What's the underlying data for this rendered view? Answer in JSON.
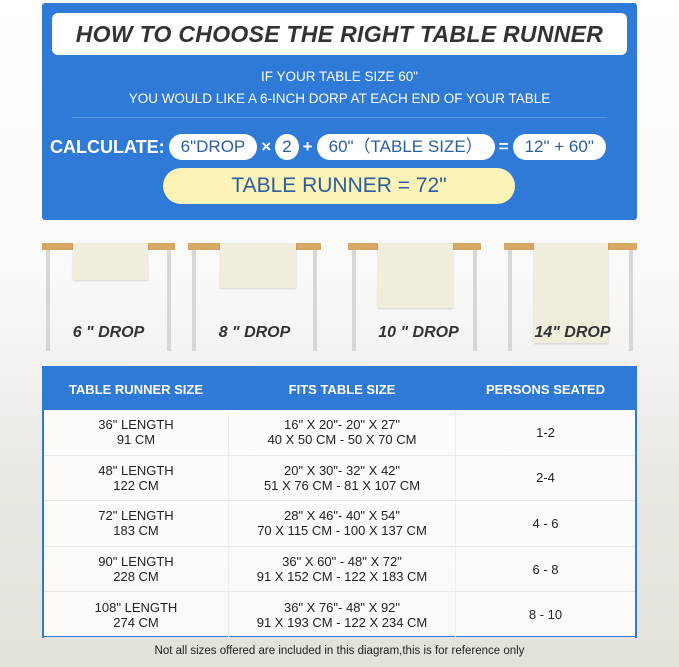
{
  "header": {
    "title": "HOW TO CHOOSE THE RIGHT TABLE RUNNER",
    "line1": "IF YOUR TABLE SIZE 60\"",
    "line2": "YOU WOULD LIKE A 6-INCH DORP AT EACH END OF YOUR TABLE"
  },
  "calculation": {
    "label": "CALCULATE:",
    "drop": "6\"DROP",
    "times": "×",
    "multiplier": "2",
    "plus": "+",
    "table_size": "60\"（TABLE SIZE）",
    "equals": "=",
    "sum": "12\" + 60\"",
    "result": "TABLE RUNNER = 72\""
  },
  "drops": [
    {
      "label": "6 \" DROP"
    },
    {
      "label": "8 \" DROP"
    },
    {
      "label": "10 \" DROP"
    },
    {
      "label": "14\" DROP"
    }
  ],
  "table": {
    "headers": [
      "TABLE RUNNER SIZE",
      "FITS TABLE SIZE",
      "PERSONS SEATED"
    ],
    "rows": [
      {
        "size_in": "36\" LENGTH",
        "size_cm": "91 CM",
        "fits_in": "16\" X 20\"- 20\" X 27\"",
        "fits_cm": "40 X 50 CM - 50 X 70 CM",
        "persons": "1-2"
      },
      {
        "size_in": "48\" LENGTH",
        "size_cm": "122 CM",
        "fits_in": "20\" X 30\"- 32\" X 42\"",
        "fits_cm": "51 X 76 CM - 81 X 107 CM",
        "persons": "2-4"
      },
      {
        "size_in": "72\" LENGTH",
        "size_cm": "183 CM",
        "fits_in": "28\" X 46\"- 40\" X 54\"",
        "fits_cm": "70 X 115 CM - 100 X 137 CM",
        "persons": "4 - 6"
      },
      {
        "size_in": "90\" LENGTH",
        "size_cm": "228 CM",
        "fits_in": "36\" X 60\" - 48\" X 72\"",
        "fits_cm": "91 X 152 CM - 122 X 183 CM",
        "persons": "6 - 8"
      },
      {
        "size_in": "108\" LENGTH",
        "size_cm": "274 CM",
        "fits_in": "36\" X 76\"- 48\" X 92\"",
        "fits_cm": "91 X 193 CM - 122 X 234 CM",
        "persons": "8 - 10"
      }
    ]
  },
  "footnote": "Not all sizes offered are included in this diagram,this is for reference only",
  "colors": {
    "blue": "#2f7ad6",
    "yellow": "#fdf3b7",
    "wood": "#d6a864"
  }
}
